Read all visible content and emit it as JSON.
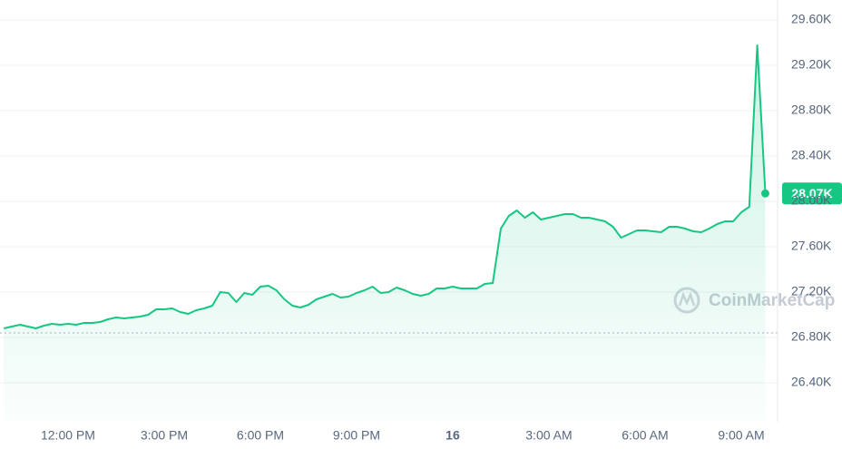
{
  "chart_data": {
    "type": "line",
    "color": "#16c784",
    "watermark": "CoinMarketCap",
    "categories": [
      null,
      null,
      null,
      null,
      null,
      null,
      null,
      null,
      "12:00 PM",
      null,
      null,
      null,
      null,
      null,
      null,
      null,
      null,
      null,
      null,
      null,
      "3:00 PM",
      null,
      null,
      null,
      null,
      null,
      null,
      null,
      null,
      null,
      null,
      null,
      "6:00 PM",
      null,
      null,
      null,
      null,
      null,
      null,
      null,
      null,
      null,
      null,
      null,
      "9:00 PM",
      null,
      null,
      null,
      null,
      null,
      null,
      null,
      null,
      null,
      null,
      null,
      "16",
      null,
      null,
      null,
      null,
      null,
      null,
      null,
      null,
      null,
      null,
      null,
      "3:00 AM",
      null,
      null,
      null,
      null,
      null,
      null,
      null,
      null,
      null,
      null,
      null,
      "6:00 AM",
      null,
      null,
      null,
      null,
      null,
      null,
      null,
      null,
      null,
      null,
      null,
      "9:00 AM",
      null,
      null,
      null
    ],
    "values": [
      26880,
      26896,
      26912,
      26896,
      26880,
      26904,
      26920,
      26912,
      26920,
      26912,
      26928,
      26928,
      26936,
      26960,
      26976,
      26968,
      26976,
      26984,
      27000,
      27048,
      27048,
      27056,
      27024,
      27008,
      27040,
      27056,
      27080,
      27200,
      27192,
      27112,
      27192,
      27176,
      27248,
      27256,
      27216,
      27136,
      27080,
      27064,
      27088,
      27136,
      27160,
      27184,
      27152,
      27160,
      27192,
      27216,
      27248,
      27192,
      27200,
      27240,
      27216,
      27184,
      27168,
      27184,
      27232,
      27232,
      27248,
      27232,
      27232,
      27232,
      27272,
      27280,
      27760,
      27872,
      27920,
      27856,
      27904,
      27840,
      27856,
      27872,
      27888,
      27888,
      27856,
      27856,
      27840,
      27824,
      27776,
      27680,
      27712,
      27744,
      27744,
      27736,
      27728,
      27776,
      27776,
      27760,
      27736,
      27728,
      27760,
      27800,
      27824,
      27824,
      27904,
      27952,
      29376,
      28070
    ],
    "value_labels": [
      null,
      null,
      null,
      null,
      null,
      null,
      null,
      null,
      null,
      null,
      null,
      null,
      null,
      null,
      null,
      null,
      null,
      null,
      null,
      null,
      null,
      null,
      null,
      null,
      null,
      null,
      null,
      null,
      null,
      null,
      null,
      null,
      null,
      null,
      null,
      null,
      null,
      null,
      null,
      null,
      null,
      null,
      null,
      null,
      null,
      null,
      null,
      null,
      null,
      null,
      null,
      null,
      null,
      null,
      null,
      null,
      null,
      null,
      null,
      null,
      null,
      null,
      null,
      null,
      null,
      null,
      null,
      null,
      null,
      null,
      null,
      null,
      null,
      null,
      null,
      null,
      null,
      null,
      null,
      null,
      null,
      null,
      null,
      null,
      null,
      null,
      null,
      null,
      null,
      null,
      null,
      null,
      null,
      null,
      null,
      "28.07K"
    ],
    "baseline": 26840,
    "ylim": [
      26056,
      29776
    ],
    "yticks": [
      {
        "value": 26400,
        "label": "26.40K"
      },
      {
        "value": 26800,
        "label": "26.80K"
      },
      {
        "value": 27200,
        "label": "27.20K"
      },
      {
        "value": 27600,
        "label": "27.60K"
      },
      {
        "value": 28000,
        "label": "28.00K"
      },
      {
        "value": 28400,
        "label": "28.40K"
      },
      {
        "value": 28800,
        "label": "28.80K"
      },
      {
        "value": 29200,
        "label": "29.20K"
      },
      {
        "value": 29600,
        "label": "29.60K"
      }
    ],
    "grid": true
  }
}
